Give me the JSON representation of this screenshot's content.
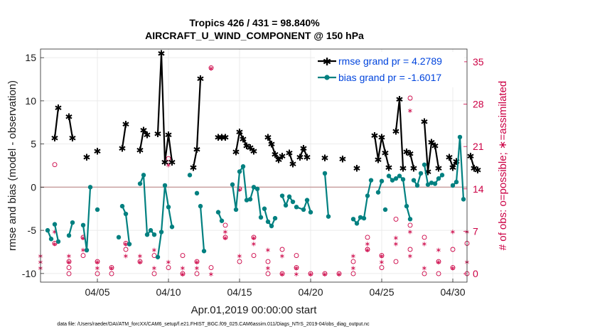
{
  "chart_data": {
    "type": "line",
    "title": "Tropics 426 / 431 = 98.840%",
    "subtitle": "AIRCRAFT_U_WIND_COMPONENT @ 150 hPa",
    "xlabel": "Apr.01,2019 00:00:00 start",
    "ylabel": "rmse and bias (model - observation)",
    "y2label": "# of obs: o=possible; ∗=assimilated",
    "xlim": [
      1,
      31
    ],
    "ylim": [
      -11,
      16
    ],
    "y2lim": [
      -1.4,
      37.1
    ],
    "x_ticks": [
      5,
      10,
      15,
      20,
      25,
      30
    ],
    "x_tick_labels": [
      "04/05",
      "04/10",
      "04/15",
      "04/20",
      "04/25",
      "04/30"
    ],
    "y_ticks": [
      -10,
      -5,
      0,
      5,
      10,
      15
    ],
    "y2_ticks": [
      0,
      7,
      14,
      21,
      28,
      35
    ],
    "zero_line": 0,
    "legend_location": "top-right",
    "series": [
      {
        "name": "rmse grand pr = 4.2789",
        "color": "#000000",
        "marker": "star",
        "segments": [
          [
            [
              2.0,
              5.7
            ],
            [
              2.25,
              9.2
            ]
          ],
          [
            [
              3.0,
              8.2
            ],
            [
              3.25,
              5.7
            ]
          ],
          [
            [
              4.25,
              3.5
            ]
          ],
          [
            [
              5.0,
              4.2
            ]
          ],
          [
            [
              6.75,
              4.5
            ],
            [
              7.0,
              7.3
            ]
          ],
          [
            [
              8.0,
              4.3
            ],
            [
              8.25,
              6.6
            ],
            [
              8.5,
              6.1
            ]
          ],
          [
            [
              9.25,
              6.2
            ],
            [
              9.5,
              15.5
            ],
            [
              9.75,
              2.9
            ],
            [
              10.0,
              6.1
            ],
            [
              10.25,
              2.9
            ]
          ],
          [
            [
              11.75,
              2.3
            ],
            [
              12.0,
              4.4
            ],
            [
              12.25,
              12.6
            ]
          ],
          [
            [
              13.5,
              5.8
            ],
            [
              13.75,
              5.8
            ],
            [
              14.0,
              5.8
            ]
          ],
          [
            [
              14.75,
              4.1
            ],
            [
              15.0,
              6.4
            ],
            [
              15.25,
              5.6
            ],
            [
              15.5,
              4.8
            ],
            [
              15.75,
              4.6
            ],
            [
              16.0,
              4.2
            ]
          ],
          [
            [
              17.0,
              5.8
            ],
            [
              17.25,
              5.0
            ],
            [
              17.5,
              3.8
            ],
            [
              17.75,
              3.2
            ],
            [
              18.0,
              3.6
            ]
          ],
          [
            [
              18.5,
              4.0
            ],
            [
              18.75,
              2.7
            ]
          ],
          [
            [
              19.25,
              3.5
            ],
            [
              19.5,
              4.5
            ],
            [
              19.75,
              3.5
            ]
          ],
          [
            [
              21.0,
              3.4
            ]
          ],
          [
            [
              22.25,
              3.3
            ]
          ],
          [
            [
              23.25,
              2.2
            ]
          ],
          [
            [
              24.5,
              6.0
            ],
            [
              24.75,
              3.2
            ],
            [
              25.0,
              5.8
            ],
            [
              25.25,
              4.0
            ],
            [
              25.5,
              2.3
            ]
          ],
          [
            [
              26.0,
              6.5
            ],
            [
              26.25,
              10.2
            ],
            [
              26.5,
              2.2
            ]
          ],
          [
            [
              26.75,
              4.1
            ],
            [
              27.0,
              3.9
            ],
            [
              27.25,
              2.2
            ]
          ],
          [
            [
              28.0,
              7.6
            ],
            [
              28.25,
              1.8
            ],
            [
              28.5,
              5.2
            ],
            [
              28.75,
              4.8
            ],
            [
              29.0,
              2.2
            ]
          ],
          [
            [
              29.75,
              3.5
            ],
            [
              30.0,
              2.3
            ],
            [
              30.25,
              3.0
            ]
          ],
          [
            [
              31.25,
              3.6
            ],
            [
              31.5,
              2.2
            ],
            [
              31.75,
              2.0
            ]
          ]
        ]
      },
      {
        "name": "bias grand pr = -1.6017",
        "color": "#008080",
        "marker": "circle",
        "segments": [
          [
            [
              1.5,
              -5.0
            ],
            [
              1.75,
              -6.0
            ]
          ],
          [
            [
              2.0,
              -4.3
            ],
            [
              2.25,
              -6.3
            ]
          ],
          [
            [
              3.0,
              -5.6
            ],
            [
              3.25,
              -4.1
            ]
          ],
          [
            [
              4.0,
              -4.4
            ],
            [
              4.25,
              -7.3
            ],
            [
              4.5,
              0.0
            ]
          ],
          [
            [
              5.0,
              -2.6
            ]
          ],
          [
            [
              6.5,
              -5.8
            ]
          ],
          [
            [
              6.75,
              -2.2
            ],
            [
              7.0,
              -3.1
            ],
            [
              7.25,
              -6.6
            ]
          ],
          [
            [
              8.0,
              0.4
            ],
            [
              8.25,
              1.4
            ],
            [
              8.5,
              -5.5
            ],
            [
              8.75,
              -5.0
            ],
            [
              9.0,
              -5.5
            ]
          ],
          [
            [
              9.25,
              -8.1
            ],
            [
              9.5,
              -5.2
            ],
            [
              9.75,
              0.2
            ],
            [
              10.0,
              -2.3
            ],
            [
              10.25,
              -4.6
            ]
          ],
          [
            [
              11.5,
              1.4
            ]
          ],
          [
            [
              12.0,
              -0.7
            ]
          ],
          [
            [
              12.25,
              -2.2
            ],
            [
              12.5,
              -7.4
            ]
          ],
          [
            [
              13.5,
              -2.9
            ],
            [
              13.75,
              -3.9
            ]
          ],
          [
            [
              14.5,
              0.3
            ],
            [
              14.75,
              -2.6
            ],
            [
              15.0,
              1.8
            ],
            [
              15.25,
              2.4
            ],
            [
              15.5,
              -1.5
            ],
            [
              15.75,
              -1.4
            ],
            [
              16.0,
              0.0
            ],
            [
              16.25,
              -0.2
            ],
            [
              16.5,
              -3.5
            ]
          ],
          [
            [
              16.75,
              -2.5
            ],
            [
              17.0,
              -4.0
            ],
            [
              17.25,
              -4.5
            ],
            [
              17.5,
              -3.6
            ]
          ],
          [
            [
              18.0,
              -1.0
            ],
            [
              18.25,
              -2.1
            ],
            [
              18.5,
              -1.1
            ],
            [
              18.75,
              -1.7
            ]
          ],
          [
            [
              19.0,
              -2.3
            ],
            [
              19.5,
              -2.6
            ],
            [
              19.75,
              -1.5
            ],
            [
              20.0,
              -2.9
            ]
          ],
          [
            [
              21.0,
              1.6
            ],
            [
              21.25,
              -3.4
            ]
          ],
          [
            [
              23.0,
              -3.7
            ],
            [
              23.25,
              -4.2
            ],
            [
              23.5,
              -3.5
            ],
            [
              23.75,
              -3.6
            ],
            [
              24.0,
              -1.0
            ],
            [
              24.25,
              0.8
            ]
          ],
          [
            [
              24.75,
              -0.6
            ],
            [
              25.0,
              0.7
            ]
          ],
          [
            [
              25.25,
              -2.6
            ]
          ],
          [
            [
              25.5,
              1.3
            ],
            [
              25.75,
              0.8
            ],
            [
              26.0,
              1.0
            ],
            [
              26.25,
              1.3
            ],
            [
              26.5,
              0.9
            ],
            [
              26.75,
              -2.2
            ],
            [
              27.0,
              -3.7
            ]
          ],
          [
            [
              27.25,
              0.8
            ],
            [
              27.5,
              0.2
            ],
            [
              27.75,
              1.6
            ]
          ],
          [
            [
              28.0,
              2.6
            ],
            [
              28.25,
              0.3
            ],
            [
              28.5,
              0.5
            ],
            [
              28.75,
              0.4
            ],
            [
              29.0,
              1.0
            ],
            [
              29.25,
              1.4
            ]
          ],
          [
            [
              30.0,
              0.2
            ],
            [
              30.25,
              0.6
            ],
            [
              30.5,
              5.8
            ],
            [
              30.75,
              -1.4
            ]
          ]
        ]
      }
    ],
    "obs_possible": [
      [
        2,
        5
      ],
      [
        2,
        18
      ],
      [
        3,
        2
      ],
      [
        3,
        1
      ],
      [
        3,
        0
      ],
      [
        4,
        6
      ],
      [
        4,
        3
      ],
      [
        5,
        0
      ],
      [
        5,
        2
      ],
      [
        6,
        1
      ],
      [
        6,
        0
      ],
      [
        7,
        4
      ],
      [
        7,
        5
      ],
      [
        8,
        2
      ],
      [
        9,
        0
      ],
      [
        9,
        3
      ],
      [
        10,
        1
      ],
      [
        10,
        19
      ],
      [
        11,
        0
      ],
      [
        11,
        3
      ],
      [
        12,
        0
      ],
      [
        12,
        2
      ],
      [
        13,
        1
      ],
      [
        13,
        34
      ],
      [
        14,
        6
      ],
      [
        14,
        8
      ],
      [
        15,
        2
      ],
      [
        15,
        14
      ],
      [
        16,
        3
      ],
      [
        16,
        6
      ],
      [
        17,
        0
      ],
      [
        17,
        2
      ],
      [
        18,
        4
      ],
      [
        18,
        0
      ],
      [
        19,
        1
      ],
      [
        19,
        3
      ],
      [
        20,
        0
      ],
      [
        21,
        0
      ],
      [
        22,
        0
      ],
      [
        23,
        2
      ],
      [
        23,
        0
      ],
      [
        24,
        4
      ],
      [
        24,
        6
      ],
      [
        25,
        3
      ],
      [
        25,
        1
      ],
      [
        26,
        9
      ],
      [
        26,
        2
      ],
      [
        27,
        4
      ],
      [
        27,
        29
      ],
      [
        27,
        8
      ],
      [
        28,
        0
      ],
      [
        28,
        6
      ],
      [
        29,
        2
      ],
      [
        29,
        0
      ],
      [
        30,
        4
      ],
      [
        30,
        1
      ],
      [
        31,
        0
      ],
      [
        31,
        5
      ]
    ],
    "obs_assimilated": [
      [
        1,
        1
      ],
      [
        1,
        2
      ],
      [
        1,
        3
      ],
      [
        2,
        7
      ],
      [
        2,
        5
      ],
      [
        3,
        3
      ],
      [
        3,
        2
      ],
      [
        4,
        6
      ],
      [
        4,
        4
      ],
      [
        5,
        2
      ],
      [
        5,
        1
      ],
      [
        6,
        1
      ],
      [
        7,
        5
      ],
      [
        7,
        3
      ],
      [
        8,
        3
      ],
      [
        8,
        2
      ],
      [
        9,
        1
      ],
      [
        9,
        4
      ],
      [
        10,
        2
      ],
      [
        10,
        18
      ],
      [
        11,
        1
      ],
      [
        11,
        0
      ],
      [
        12,
        2
      ],
      [
        12,
        1
      ],
      [
        13,
        0
      ],
      [
        13,
        34
      ],
      [
        14,
        7
      ],
      [
        14,
        6
      ],
      [
        15,
        3
      ],
      [
        15,
        14
      ],
      [
        16,
        5
      ],
      [
        16,
        6
      ],
      [
        17,
        1
      ],
      [
        17,
        4
      ],
      [
        18,
        3
      ],
      [
        18,
        0
      ],
      [
        19,
        1
      ],
      [
        19,
        0
      ],
      [
        20,
        0
      ],
      [
        21,
        0
      ],
      [
        22,
        0
      ],
      [
        23,
        3
      ],
      [
        23,
        1
      ],
      [
        24,
        5
      ],
      [
        24,
        4
      ],
      [
        25,
        2
      ],
      [
        25,
        3
      ],
      [
        26,
        6
      ],
      [
        26,
        5
      ],
      [
        27,
        3
      ],
      [
        27,
        27
      ],
      [
        27,
        7
      ],
      [
        28,
        1
      ],
      [
        28,
        5
      ],
      [
        29,
        2
      ],
      [
        29,
        4
      ],
      [
        30,
        1
      ],
      [
        30,
        7
      ],
      [
        31,
        2
      ],
      [
        31,
        7
      ]
    ]
  },
  "footer": {
    "data_file": "data file: /Users/raeder/DAI/ATM_forcXX/CAM6_setup/f.e21.FHIST_BGC.f09_025.CAM6assim.011/Diags_NTrS_2019-04/obs_diag_output.nc"
  },
  "colors": {
    "rmse": "#000000",
    "bias": "#008080",
    "obs": "#cc0044",
    "legend_text": "#0044dd",
    "zero_line": "#c8a0a0"
  }
}
